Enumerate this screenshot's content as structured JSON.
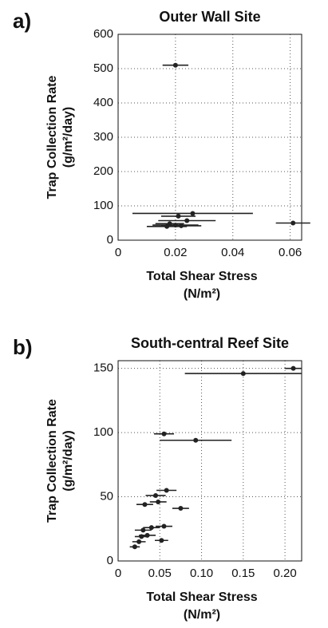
{
  "chart_data": [
    {
      "type": "scatter",
      "panel": "a)",
      "title": "Outer Wall Site",
      "y_label": [
        "Trap Collection Rate",
        "(g/m²/day)"
      ],
      "x_label": [
        "Total Shear Stress",
        "(N/m²)"
      ],
      "x": [
        0.02,
        0.026,
        0.021,
        0.024,
        0.061,
        0.018,
        0.02,
        0.017,
        0.022
      ],
      "y": [
        510,
        78,
        70,
        57,
        50,
        48,
        44,
        40,
        42
      ],
      "xerr": [
        0.0045,
        0.021,
        0.006,
        0.01,
        0.006,
        0.005,
        0.008,
        0.007,
        0.007
      ],
      "color": "#222222",
      "grid": true,
      "xlim": [
        0,
        0.064
      ],
      "xticks": [
        0,
        0.02,
        0.04,
        0.06
      ],
      "ylim": [
        0,
        600
      ],
      "yticks": [
        0,
        100,
        200,
        300,
        400,
        500,
        600
      ]
    },
    {
      "type": "scatter",
      "panel": "b)",
      "title": "South-central Reef Site",
      "y_label": [
        "Trap Collection Rate",
        "(g/m²/day)"
      ],
      "x_label": [
        "Total Shear Stress",
        "(N/m²)"
      ],
      "x": [
        0.21,
        0.15,
        0.055,
        0.093,
        0.058,
        0.045,
        0.048,
        0.032,
        0.075,
        0.055,
        0.04,
        0.03,
        0.035,
        0.028,
        0.025,
        0.052,
        0.02
      ],
      "y": [
        150,
        146,
        99,
        94,
        55,
        51,
        46,
        44,
        41,
        27,
        26,
        24,
        20,
        19,
        15,
        16,
        11
      ],
      "xerr": [
        0.01,
        0.07,
        0.012,
        0.043,
        0.012,
        0.012,
        0.01,
        0.01,
        0.01,
        0.01,
        0.01,
        0.01,
        0.01,
        0.008,
        0.008,
        0.008,
        0.006
      ],
      "color": "#222222",
      "grid": true,
      "xlim": [
        0,
        0.22
      ],
      "xticks": [
        0,
        {
          "value": 0.05,
          "label": "0.05"
        },
        {
          "value": 0.1,
          "label": "0.10"
        },
        {
          "value": 0.15,
          "label": "0.15"
        },
        {
          "value": 0.2,
          "label": "0.20"
        }
      ],
      "ylim": [
        0,
        156
      ],
      "yticks": [
        0,
        50,
        100,
        150
      ]
    }
  ]
}
